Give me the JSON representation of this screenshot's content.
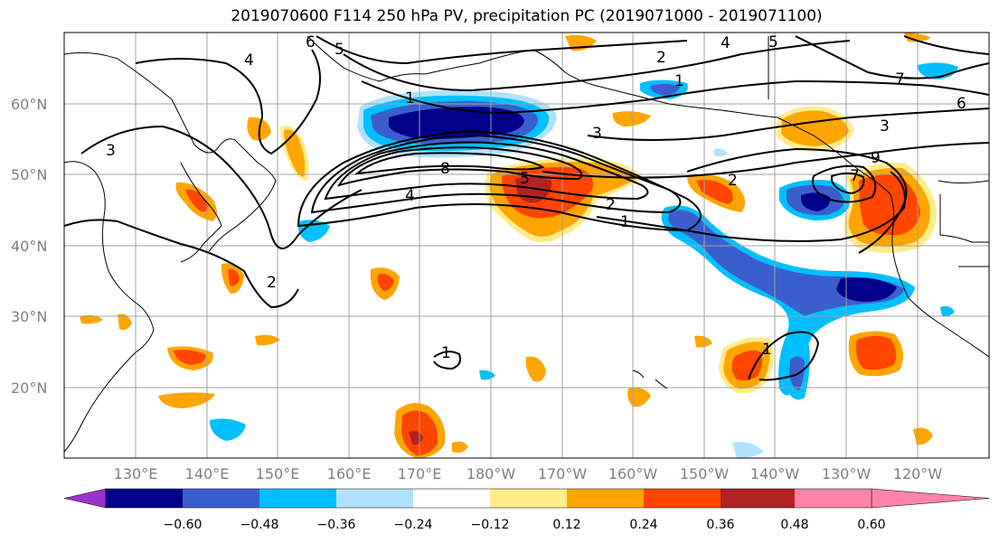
{
  "title": "2019070600 F114 250 hPa PV, precipitation PC (2019071000 - 2019071100)",
  "map": {
    "lat_labels": [
      "60°N",
      "50°N",
      "40°N",
      "30°N",
      "20°N"
    ],
    "lon_labels": [
      "130°E",
      "140°E",
      "150°E",
      "160°E",
      "170°E",
      "180°W",
      "170°W",
      "160°W",
      "150°W",
      "140°W",
      "130°W",
      "120°W"
    ],
    "pv_contour_labels": [
      "6",
      "5",
      "4",
      "4",
      "2",
      "1",
      "5",
      "3",
      "8",
      "1",
      "3",
      "2",
      "1",
      "2",
      "9",
      "7",
      "6",
      "3",
      "5",
      "4",
      "2",
      "1",
      "1",
      "7"
    ]
  },
  "colorbar": {
    "colors": [
      "#9a32cd",
      "#00008b",
      "#3a5fcd",
      "#00bfff",
      "#b0e2ff",
      "#ffffff",
      "#ffec8b",
      "#ffa500",
      "#ff4500",
      "#b22222",
      "#ff83a8"
    ],
    "tick_labels": [
      "−0.60",
      "−0.48",
      "−0.36",
      "−0.24",
      "−0.12",
      "0.12",
      "0.24",
      "0.36",
      "0.48",
      "0.60"
    ]
  }
}
